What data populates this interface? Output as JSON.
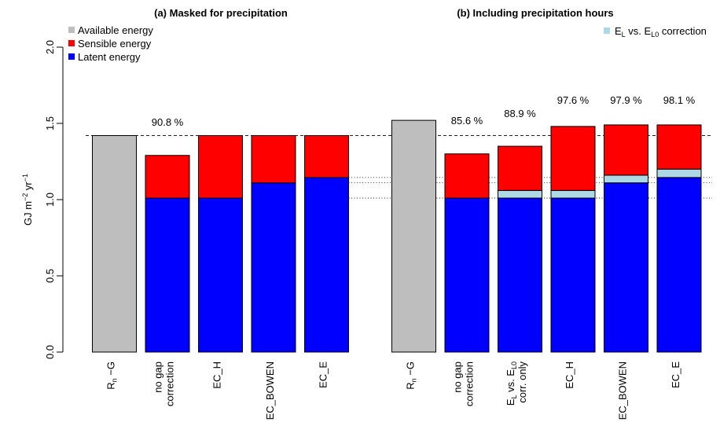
{
  "chart_data": {
    "type": "bar",
    "ylim": [
      0,
      2.0
    ],
    "yticks": [
      "0.0",
      "0.5",
      "1.0",
      "1.5",
      "2.0"
    ],
    "ylabel": {
      "base": "GJ m",
      "exp1": "−2",
      "mid": " yr",
      "exp2": "−1"
    },
    "colors": {
      "available": "#bebebe",
      "sensible": "#ff0000",
      "latent": "#0000ff",
      "correction": "#add8e6"
    },
    "reference_lines": {
      "dashed": 1.42,
      "dotted": [
        1.01,
        1.11,
        1.145
      ]
    },
    "legend_main": [
      {
        "key": "available",
        "label": "Available energy"
      },
      {
        "key": "sensible",
        "label": "Sensible energy"
      },
      {
        "key": "latent",
        "label": "Latent energy"
      }
    ],
    "legend_correction": {
      "key": "correction",
      "parts": [
        {
          "t": "E",
          "sub": false
        },
        {
          "t": "L",
          "sub": true
        },
        {
          "t": " vs. E",
          "sub": false
        },
        {
          "t": "L0",
          "sub": true
        },
        {
          "t": " correction",
          "sub": false
        }
      ]
    },
    "panels": [
      {
        "title": "(a) Masked for precipitation",
        "bars": [
          {
            "id": "rn-g",
            "type": "available",
            "value": 1.42,
            "percent": "",
            "label_lines": [
              [
                {
                  "t": "R",
                  "sub": false
                },
                {
                  "t": "n",
                  "sub": true
                },
                {
                  "t": " −G",
                  "sub": false
                }
              ]
            ]
          },
          {
            "id": "no-gap",
            "type": "stack",
            "latent": 1.01,
            "correction": 0,
            "sensible": 0.28,
            "percent": "90.8 %",
            "label_lines": [
              [
                {
                  "t": "no gap",
                  "sub": false
                }
              ],
              [
                {
                  "t": "correction",
                  "sub": false
                }
              ]
            ]
          },
          {
            "id": "ec-h",
            "type": "stack",
            "latent": 1.01,
            "correction": 0,
            "sensible": 0.41,
            "percent": "",
            "label_lines": [
              [
                {
                  "t": "EC_H",
                  "sub": false
                }
              ]
            ]
          },
          {
            "id": "ec-bowen",
            "type": "stack",
            "latent": 1.11,
            "correction": 0,
            "sensible": 0.31,
            "percent": "",
            "label_lines": [
              [
                {
                  "t": "EC_BOWEN",
                  "sub": false
                }
              ]
            ]
          },
          {
            "id": "ec-e",
            "type": "stack",
            "latent": 1.145,
            "correction": 0,
            "sensible": 0.275,
            "percent": "",
            "label_lines": [
              [
                {
                  "t": "EC_E",
                  "sub": false
                }
              ]
            ]
          }
        ]
      },
      {
        "title": "(b) Including precipitation hours",
        "bars": [
          {
            "id": "rn-g",
            "type": "available",
            "value": 1.52,
            "percent": "",
            "label_lines": [
              [
                {
                  "t": "R",
                  "sub": false
                },
                {
                  "t": "n",
                  "sub": true
                },
                {
                  "t": " −G",
                  "sub": false
                }
              ]
            ]
          },
          {
            "id": "no-gap",
            "type": "stack",
            "latent": 1.01,
            "correction": 0,
            "sensible": 0.29,
            "percent": "85.6 %",
            "label_lines": [
              [
                {
                  "t": "no gap",
                  "sub": false
                }
              ],
              [
                {
                  "t": "correction",
                  "sub": false
                }
              ]
            ]
          },
          {
            "id": "el-corr",
            "type": "stack",
            "latent": 1.01,
            "correction": 0.05,
            "sensible": 0.29,
            "percent": "88.9 %",
            "label_lines": [
              [
                {
                  "t": "E",
                  "sub": false
                },
                {
                  "t": "L",
                  "sub": true
                },
                {
                  "t": " vs. E",
                  "sub": false
                },
                {
                  "t": "L0",
                  "sub": true
                }
              ],
              [
                {
                  "t": "corr. only",
                  "sub": false
                }
              ]
            ]
          },
          {
            "id": "ec-h",
            "type": "stack",
            "latent": 1.01,
            "correction": 0.05,
            "sensible": 0.42,
            "percent": "97.6 %",
            "label_lines": [
              [
                {
                  "t": "EC_H",
                  "sub": false
                }
              ]
            ]
          },
          {
            "id": "ec-bowen",
            "type": "stack",
            "latent": 1.11,
            "correction": 0.05,
            "sensible": 0.33,
            "percent": "97.9 %",
            "label_lines": [
              [
                {
                  "t": "EC_BOWEN",
                  "sub": false
                }
              ]
            ]
          },
          {
            "id": "ec-e",
            "type": "stack",
            "latent": 1.145,
            "correction": 0.055,
            "sensible": 0.29,
            "percent": "98.1 %",
            "label_lines": [
              [
                {
                  "t": "EC_E",
                  "sub": false
                }
              ]
            ]
          }
        ]
      }
    ]
  }
}
